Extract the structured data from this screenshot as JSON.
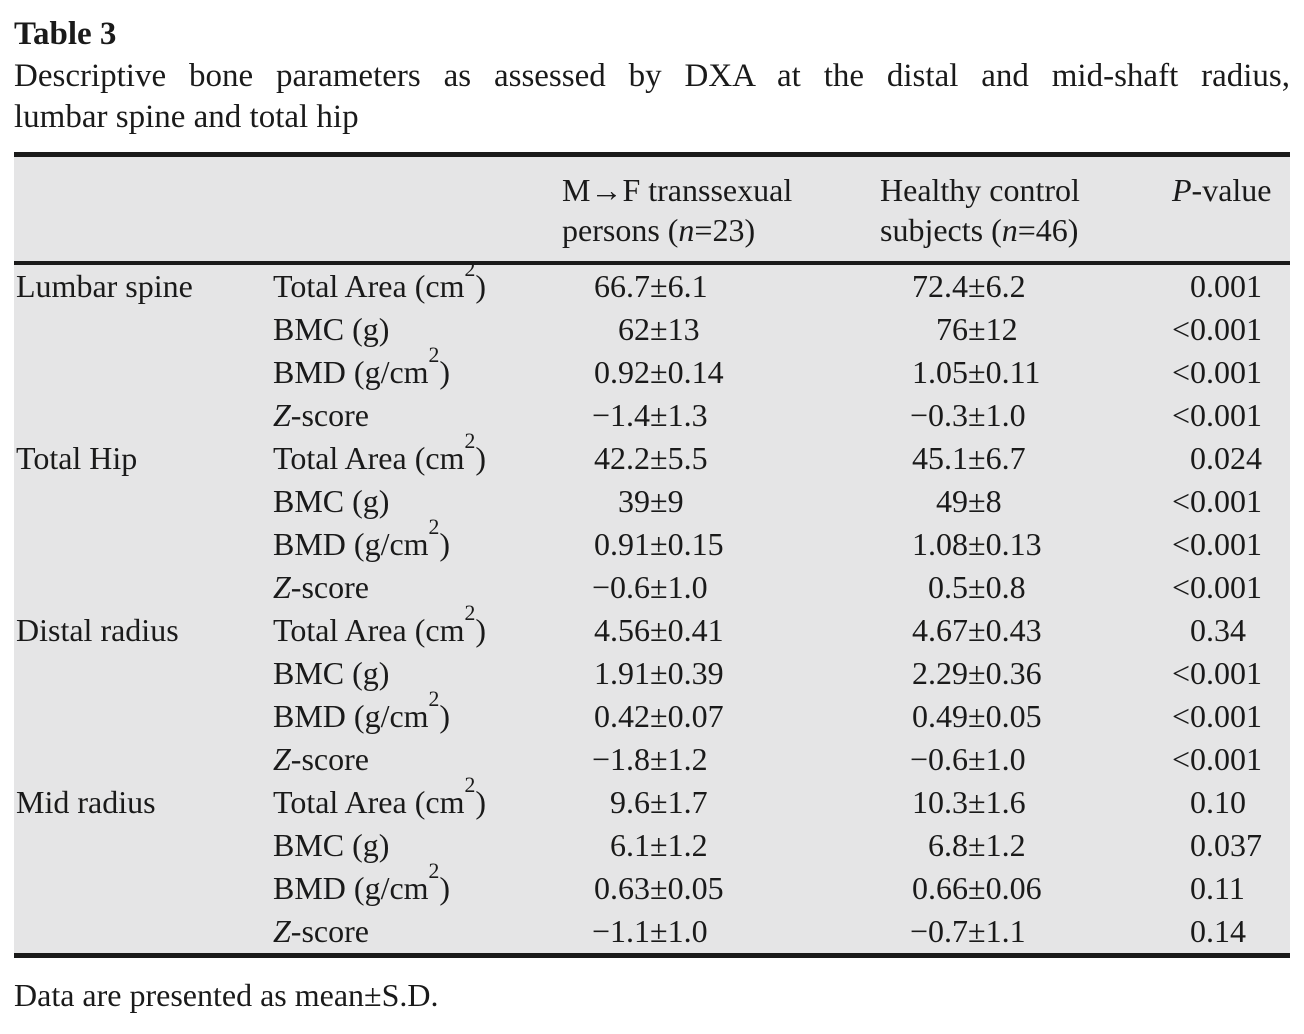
{
  "page": {
    "table_label": "Table 3",
    "caption_line1": "Descriptive bone parameters as assessed by DXA at the distal and mid-shaft radius,",
    "caption_line2": "lumbar spine and total hip",
    "footnote": "Data are presented as mean±S.D."
  },
  "colors": {
    "table_background": "#e5e5e6",
    "rule": "#1a1a1a",
    "text": "#1a1a1a"
  },
  "table": {
    "header": {
      "group_col3": {
        "line1": "M→F transsexual",
        "line2_pre": "persons (",
        "n_var": "n",
        "line2_post": "=23)"
      },
      "group_col4": {
        "line1": "Healthy control",
        "line2_pre": "subjects (",
        "n_var": "n",
        "line2_post": "=46)"
      },
      "p_col": {
        "italic": "P",
        "rest": "-value"
      }
    },
    "groups": [
      {
        "region": "Lumbar spine",
        "rows": [
          {
            "param": "Total Area (cm²)",
            "mf": "66.7±6.1",
            "hc": "72.4±6.2",
            "p": "0.001"
          },
          {
            "param": "BMC (g)",
            "mf": "62±13",
            "hc": "76±12",
            "p": "<0.001"
          },
          {
            "param": "BMD (g/cm²)",
            "mf": "0.92±0.14",
            "hc": "1.05±0.11",
            "p": "<0.001"
          },
          {
            "param_italic": "Z",
            "param": "-score",
            "mf": "−1.4±1.3",
            "hc": "−0.3±1.0",
            "p": "<0.001"
          }
        ]
      },
      {
        "region": "Total Hip",
        "rows": [
          {
            "param": "Total Area (cm²)",
            "mf": "42.2±5.5",
            "hc": "45.1±6.7",
            "p": "0.024"
          },
          {
            "param": "BMC (g)",
            "mf": "39±9",
            "hc": "49±8",
            "p": "<0.001"
          },
          {
            "param": "BMD (g/cm²)",
            "mf": "0.91±0.15",
            "hc": "1.08±0.13",
            "p": "<0.001"
          },
          {
            "param_italic": "Z",
            "param": "-score",
            "mf": "−0.6±1.0",
            "hc": "0.5±0.8",
            "p": "<0.001"
          }
        ]
      },
      {
        "region": "Distal radius",
        "rows": [
          {
            "param": "Total Area (cm²)",
            "mf": "4.56±0.41",
            "hc": "4.67±0.43",
            "p": "0.34"
          },
          {
            "param": "BMC (g)",
            "mf": "1.91±0.39",
            "hc": "2.29±0.36",
            "p": "<0.001"
          },
          {
            "param": "BMD (g/cm²)",
            "mf": "0.42±0.07",
            "hc": "0.49±0.05",
            "p": "<0.001"
          },
          {
            "param_italic": "Z",
            "param": "-score",
            "mf": "−1.8±1.2",
            "hc": "−0.6±1.0",
            "p": "<0.001"
          }
        ]
      },
      {
        "region": "Mid radius",
        "rows": [
          {
            "param": "Total Area (cm²)",
            "mf": "9.6±1.7",
            "hc": "10.3±1.6",
            "p": "0.10"
          },
          {
            "param": "BMC (g)",
            "mf": "6.1±1.2",
            "hc": "6.8±1.2",
            "p": "0.037"
          },
          {
            "param": "BMD (g/cm²)",
            "mf": "0.63±0.05",
            "hc": "0.66±0.06",
            "p": "0.11"
          },
          {
            "param_italic": "Z",
            "param": "-score",
            "mf": "−1.1±1.0",
            "hc": "−0.7±1.1",
            "p": "0.14"
          }
        ]
      }
    ]
  }
}
